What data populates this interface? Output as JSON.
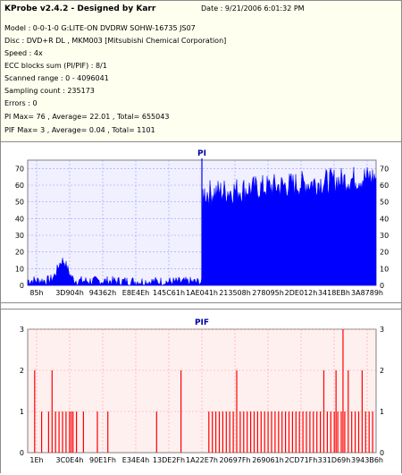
{
  "info": {
    "app_title": "KProbe v2.4.2 - Designed by Karr",
    "date": "Date : 9/21/2006 6:01:32 PM",
    "lines": [
      "Model : 0-0-1-0 G:LITE-ON DVDRW SOHW-16735 JS07",
      "Disc : DVD+R DL , MKM003 [Mitsubishi Chemical Corporation]",
      "Speed : 4x",
      "ECC blocks sum (PI/PIF) : 8/1",
      "Scanned range : 0 - 4096041",
      "Sampling count : 235173",
      "Errors : 0",
      "PI Max= 76 , Average= 22.01 , Total= 655043",
      "PIF Max= 3 , Average= 0.04 , Total= 1101"
    ]
  },
  "chart_data": [
    {
      "type": "area",
      "title": "PI",
      "ylim": [
        0,
        75
      ],
      "y_ticks": [
        "0",
        "10",
        "20",
        "30",
        "40",
        "50",
        "60",
        "70"
      ],
      "x_ticks": [
        "85h",
        "3D904h",
        "94362h",
        "E8E4Eh",
        "145C61h",
        "1AE041h",
        "213508h",
        "278095h",
        "2DE012h",
        "3418EBh",
        "3A8789h"
      ],
      "segments": [
        {
          "name": "layer0",
          "x_range": [
            0,
            0.5
          ],
          "level_start": 3,
          "level_end": 2,
          "noise": 3,
          "bump_center": 0.1,
          "bump_height": 12
        },
        {
          "name": "layer1",
          "x_range": [
            0.5,
            1.0
          ],
          "level_start": 55,
          "level_end": 65,
          "noise": 8
        }
      ],
      "spike": {
        "position": 0.5,
        "value": 76
      },
      "colors": {
        "fill": "#0000ff",
        "grid": "#9999ff",
        "background": "#f0f0ff",
        "axis": "#808080",
        "title": "#0000a0"
      }
    },
    {
      "type": "bar",
      "title": "PIF",
      "ylim": [
        0,
        3
      ],
      "y_ticks": [
        "0",
        "1",
        "2",
        "3"
      ],
      "x_ticks": [
        "1Eh",
        "3C0E4h",
        "90E1Fh",
        "E34E4h",
        "13DE2Fh",
        "1A22E7h",
        "20697Fh",
        "269061h",
        "2CD71Fh",
        "331D69h",
        "3943B6h"
      ],
      "bars": [
        {
          "x": 0.02,
          "v": 2
        },
        {
          "x": 0.04,
          "v": 1
        },
        {
          "x": 0.06,
          "v": 1
        },
        {
          "x": 0.07,
          "v": 2
        },
        {
          "x": 0.08,
          "v": 1
        },
        {
          "x": 0.09,
          "v": 1
        },
        {
          "x": 0.1,
          "v": 1
        },
        {
          "x": 0.11,
          "v": 1
        },
        {
          "x": 0.12,
          "v": 1
        },
        {
          "x": 0.125,
          "v": 1
        },
        {
          "x": 0.13,
          "v": 1
        },
        {
          "x": 0.14,
          "v": 1
        },
        {
          "x": 0.16,
          "v": 1
        },
        {
          "x": 0.2,
          "v": 1
        },
        {
          "x": 0.23,
          "v": 1
        },
        {
          "x": 0.37,
          "v": 1
        },
        {
          "x": 0.44,
          "v": 2
        },
        {
          "x": 0.52,
          "v": 1
        },
        {
          "x": 0.53,
          "v": 1
        },
        {
          "x": 0.54,
          "v": 1
        },
        {
          "x": 0.55,
          "v": 1
        },
        {
          "x": 0.56,
          "v": 1
        },
        {
          "x": 0.57,
          "v": 1
        },
        {
          "x": 0.58,
          "v": 1
        },
        {
          "x": 0.59,
          "v": 1
        },
        {
          "x": 0.6,
          "v": 2
        },
        {
          "x": 0.61,
          "v": 1
        },
        {
          "x": 0.62,
          "v": 1
        },
        {
          "x": 0.63,
          "v": 1
        },
        {
          "x": 0.64,
          "v": 1
        },
        {
          "x": 0.65,
          "v": 1
        },
        {
          "x": 0.66,
          "v": 1
        },
        {
          "x": 0.67,
          "v": 1
        },
        {
          "x": 0.68,
          "v": 1
        },
        {
          "x": 0.69,
          "v": 1
        },
        {
          "x": 0.7,
          "v": 1
        },
        {
          "x": 0.71,
          "v": 1
        },
        {
          "x": 0.72,
          "v": 1
        },
        {
          "x": 0.73,
          "v": 1
        },
        {
          "x": 0.74,
          "v": 1
        },
        {
          "x": 0.75,
          "v": 1
        },
        {
          "x": 0.76,
          "v": 1
        },
        {
          "x": 0.77,
          "v": 1
        },
        {
          "x": 0.78,
          "v": 1
        },
        {
          "x": 0.79,
          "v": 1
        },
        {
          "x": 0.8,
          "v": 1
        },
        {
          "x": 0.81,
          "v": 1
        },
        {
          "x": 0.82,
          "v": 1
        },
        {
          "x": 0.83,
          "v": 1
        },
        {
          "x": 0.84,
          "v": 1
        },
        {
          "x": 0.85,
          "v": 2
        },
        {
          "x": 0.86,
          "v": 1
        },
        {
          "x": 0.87,
          "v": 1
        },
        {
          "x": 0.88,
          "v": 1
        },
        {
          "x": 0.885,
          "v": 2
        },
        {
          "x": 0.89,
          "v": 1
        },
        {
          "x": 0.9,
          "v": 1
        },
        {
          "x": 0.905,
          "v": 3
        },
        {
          "x": 0.91,
          "v": 1
        },
        {
          "x": 0.92,
          "v": 2
        },
        {
          "x": 0.93,
          "v": 1
        },
        {
          "x": 0.94,
          "v": 1
        },
        {
          "x": 0.95,
          "v": 1
        },
        {
          "x": 0.96,
          "v": 2
        },
        {
          "x": 0.97,
          "v": 1
        },
        {
          "x": 0.98,
          "v": 1
        },
        {
          "x": 0.99,
          "v": 1
        }
      ],
      "colors": {
        "bar": "#ff0000",
        "grid": "#ff9999",
        "background": "#fff0f0",
        "axis": "#808080",
        "title": "#0000a0"
      }
    }
  ]
}
